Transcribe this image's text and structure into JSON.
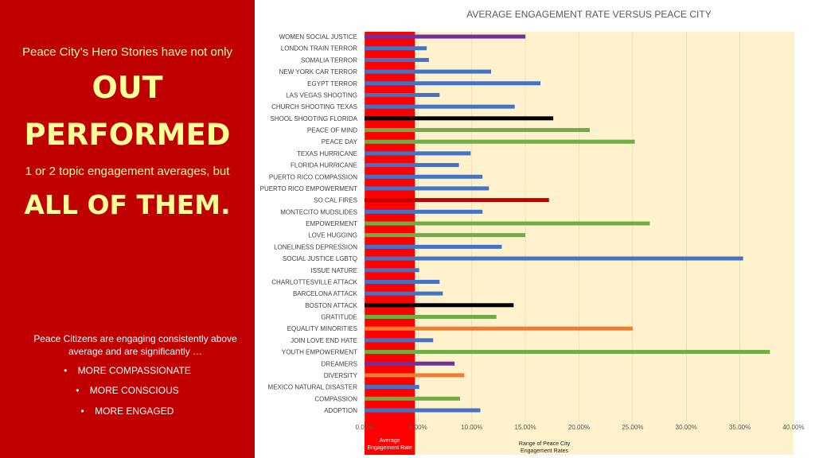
{
  "left_panel": {
    "intro": "Peace City’s Hero Stories have not only",
    "headline_1": "OUT",
    "headline_2": "PERFORMED",
    "middle": "1 or 2 topic engagement averages, but",
    "headline_3": "ALL OF THEM.",
    "summary": "Peace Citizens are engaging consistently above average and are significantly …",
    "bullets": [
      "MORE COMPASSIONATE",
      "MORE CONSCIOUS",
      "MORE ENGAGED"
    ]
  },
  "chart_data": {
    "type": "bar",
    "orientation": "horizontal",
    "title": "AVERAGE ENGAGEMENT RATE VERSUS PEACE CITY",
    "xlim": [
      0,
      40
    ],
    "xticks": [
      "0.00%",
      "5.00%",
      "10.00%",
      "15.00%",
      "20.00%",
      "25.00%",
      "30.00%",
      "35.00%",
      "40.00%"
    ],
    "average_band": {
      "from": 0,
      "to": 4.7,
      "label": "Average Engagement Rate",
      "color": "#ff0000"
    },
    "range_band": {
      "from": 4.7,
      "to": 40,
      "label": "Range of Peace City Engagement Rates",
      "color": "#fff2cc"
    },
    "categories": [
      "WOMEN SOCIAL JUSTICE",
      "LONDON TRAIN TERROR",
      "SOMALIA TERROR",
      "NEW YORK CAR TERROR",
      "EGYPT TERROR",
      "LAS VEGAS SHOOTING",
      "CHURCH SHOOTING TEXAS",
      "SHOOL SHOOTING FLORIDA",
      "PEACE OF MIND",
      "PEACE DAY",
      "TEXAS HURRICANE",
      "FLORIDA HURRICANE",
      "PUERTO RICO COMPASSION",
      "PUERTO RICO EMPOWERMENT",
      "SO CAL FIRES",
      "MONTECITO MUDSLIDES",
      "EMPOWERMENT",
      "LOVE HUGGING",
      "LONELINESS DEPRESSION",
      "SOCIAL JUSTICE LGBTQ",
      "ISSUE NATURE",
      "CHARLOTTESVILLE ATTACK",
      "BARCELONA ATTACK",
      "BOSTON ATTACK",
      "GRATITUDE",
      "EQUALITY MINORITIES",
      "JOIN LOVE END HATE",
      "YOUTH EMPOWERMENT",
      "DREAMERS",
      "DIVERSITY",
      "MEXICO NATURAL DISASTER",
      "COMPASSION",
      "ADOPTION"
    ],
    "values": [
      15.0,
      5.8,
      6.0,
      11.8,
      16.4,
      7.0,
      14.0,
      17.6,
      21.0,
      25.2,
      9.9,
      8.8,
      11.0,
      11.6,
      17.2,
      11.0,
      26.6,
      15.0,
      12.8,
      35.3,
      5.1,
      7.0,
      7.3,
      13.9,
      12.3,
      25.0,
      6.4,
      37.8,
      8.4,
      9.3,
      5.1,
      8.9,
      10.8
    ],
    "colors": [
      "#7030a0",
      "#4472c4",
      "#4472c4",
      "#4472c4",
      "#4472c4",
      "#4472c4",
      "#4472c4",
      "#000000",
      "#70ad47",
      "#70ad47",
      "#4472c4",
      "#4472c4",
      "#4472c4",
      "#4472c4",
      "#c00000",
      "#4472c4",
      "#70ad47",
      "#70ad47",
      "#4472c4",
      "#4472c4",
      "#4472c4",
      "#4472c4",
      "#4472c4",
      "#000000",
      "#70ad47",
      "#ed7d31",
      "#4472c4",
      "#70ad47",
      "#7030a0",
      "#ed7d31",
      "#4472c4",
      "#70ad47",
      "#4472c4"
    ]
  }
}
